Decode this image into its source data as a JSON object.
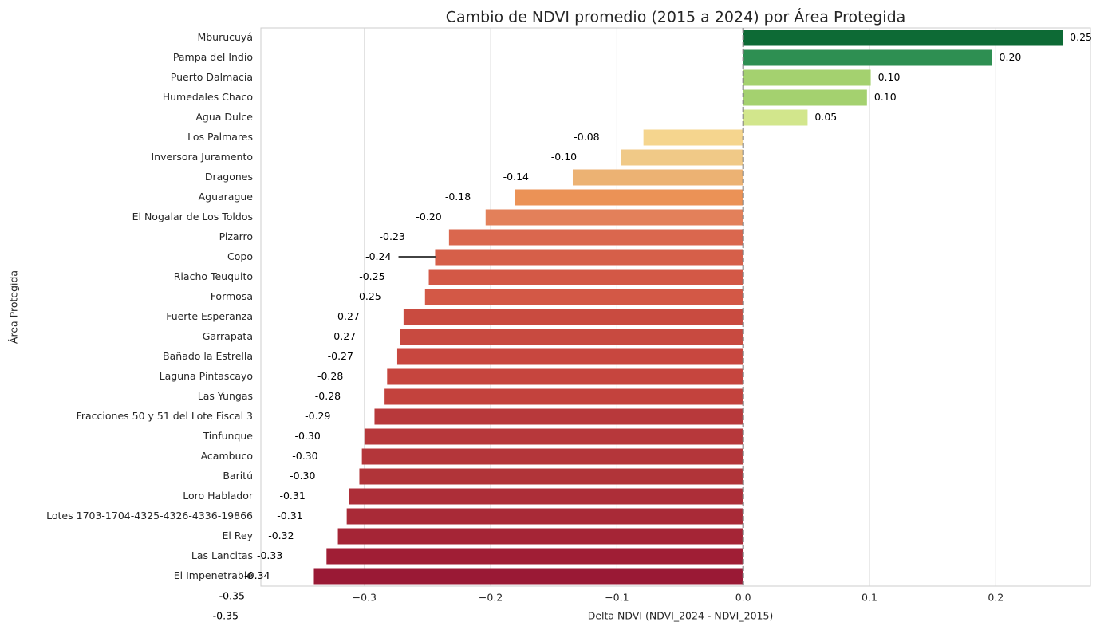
{
  "chart_data": {
    "type": "barh",
    "title": "Cambio de NDVI promedio (2015 a 2024) por Área Protegida",
    "xlabel": "Delta NDVI (NDVI_2024 - NDVI_2015)",
    "ylabel": "Área Protegida",
    "categories": [
      "Mburucuyá",
      "Pampa del Indio",
      "Puerto Dalmacia",
      "Humedales Chaco",
      "Agua Dulce",
      "Los Palmares",
      "Inversora Juramento",
      "Dragones",
      "Aguarague",
      "El Nogalar de Los Toldos",
      "Pizarro",
      "Copo",
      "Riacho Teuquito",
      "Formosa",
      "Fuerte Esperanza",
      "Garrapata",
      "Bañado la Estrella",
      "Laguna Pintascayo",
      "Las Yungas",
      "Fracciones 50 y 51 del Lote Fiscal 3",
      "Tinfunque",
      "Acambuco",
      "Baritú",
      "Loro Hablador",
      "Lotes 1703-1704-4325-4326-4336-19866",
      "El Rey",
      "Las Lancitas",
      "El Impenetrable"
    ],
    "values": [
      0.253,
      0.197,
      0.101,
      0.098,
      0.051,
      -0.079,
      -0.097,
      -0.135,
      -0.181,
      -0.204,
      -0.233,
      -0.244,
      -0.249,
      -0.252,
      -0.269,
      -0.272,
      -0.274,
      -0.282,
      -0.284,
      -0.292,
      -0.3,
      -0.302,
      -0.304,
      -0.312,
      -0.314,
      -0.321,
      -0.33,
      -0.34
    ],
    "value_labels": [
      "0.25",
      "0.20",
      "0.10",
      "0.10",
      "0.05",
      "-0.08",
      "-0.10",
      "-0.14",
      "-0.18",
      "-0.20",
      "-0.23",
      "-0.24",
      "-0.25",
      "-0.25",
      "-0.27",
      "-0.27",
      "-0.27",
      "-0.28",
      "-0.28",
      "-0.29",
      "-0.30",
      "-0.30",
      "-0.30",
      "-0.31",
      "-0.31",
      "-0.32",
      "-0.33",
      "-0.34"
    ],
    "extra_value_labels": [
      "-0.35",
      "-0.35"
    ],
    "colors": [
      "#0d6a35",
      "#2e8f52",
      "#a4d16f",
      "#a4d16f",
      "#d2e68c",
      "#f5d58e",
      "#f0c987",
      "#ecb273",
      "#eb9256",
      "#e3805a",
      "#da674e",
      "#d65f49",
      "#d35846",
      "#d35846",
      "#c94b40",
      "#c84a40",
      "#c8473f",
      "#c6453e",
      "#c3423d",
      "#b8393b",
      "#b7383b",
      "#b4363a",
      "#b13439",
      "#ad2e38",
      "#a92a37",
      "#a52536",
      "#a01e35",
      "#9a1935"
    ],
    "ci": [
      null,
      null,
      null,
      null,
      null,
      null,
      null,
      null,
      null,
      null,
      null,
      [
        -0.273,
        -0.243
      ],
      null,
      null,
      null,
      null,
      null,
      null,
      null,
      null,
      null,
      null,
      null,
      null,
      null,
      null,
      null,
      null
    ],
    "xlim": [
      -0.382,
      0.275
    ],
    "xticks": [
      {
        "value": -0.3,
        "label": "−0.3"
      },
      {
        "value": -0.2,
        "label": "−0.2"
      },
      {
        "value": -0.1,
        "label": "−0.1"
      },
      {
        "value": 0,
        "label": "0.0"
      },
      0.1,
      0.2
    ],
    "vline": 0,
    "grid": true
  }
}
